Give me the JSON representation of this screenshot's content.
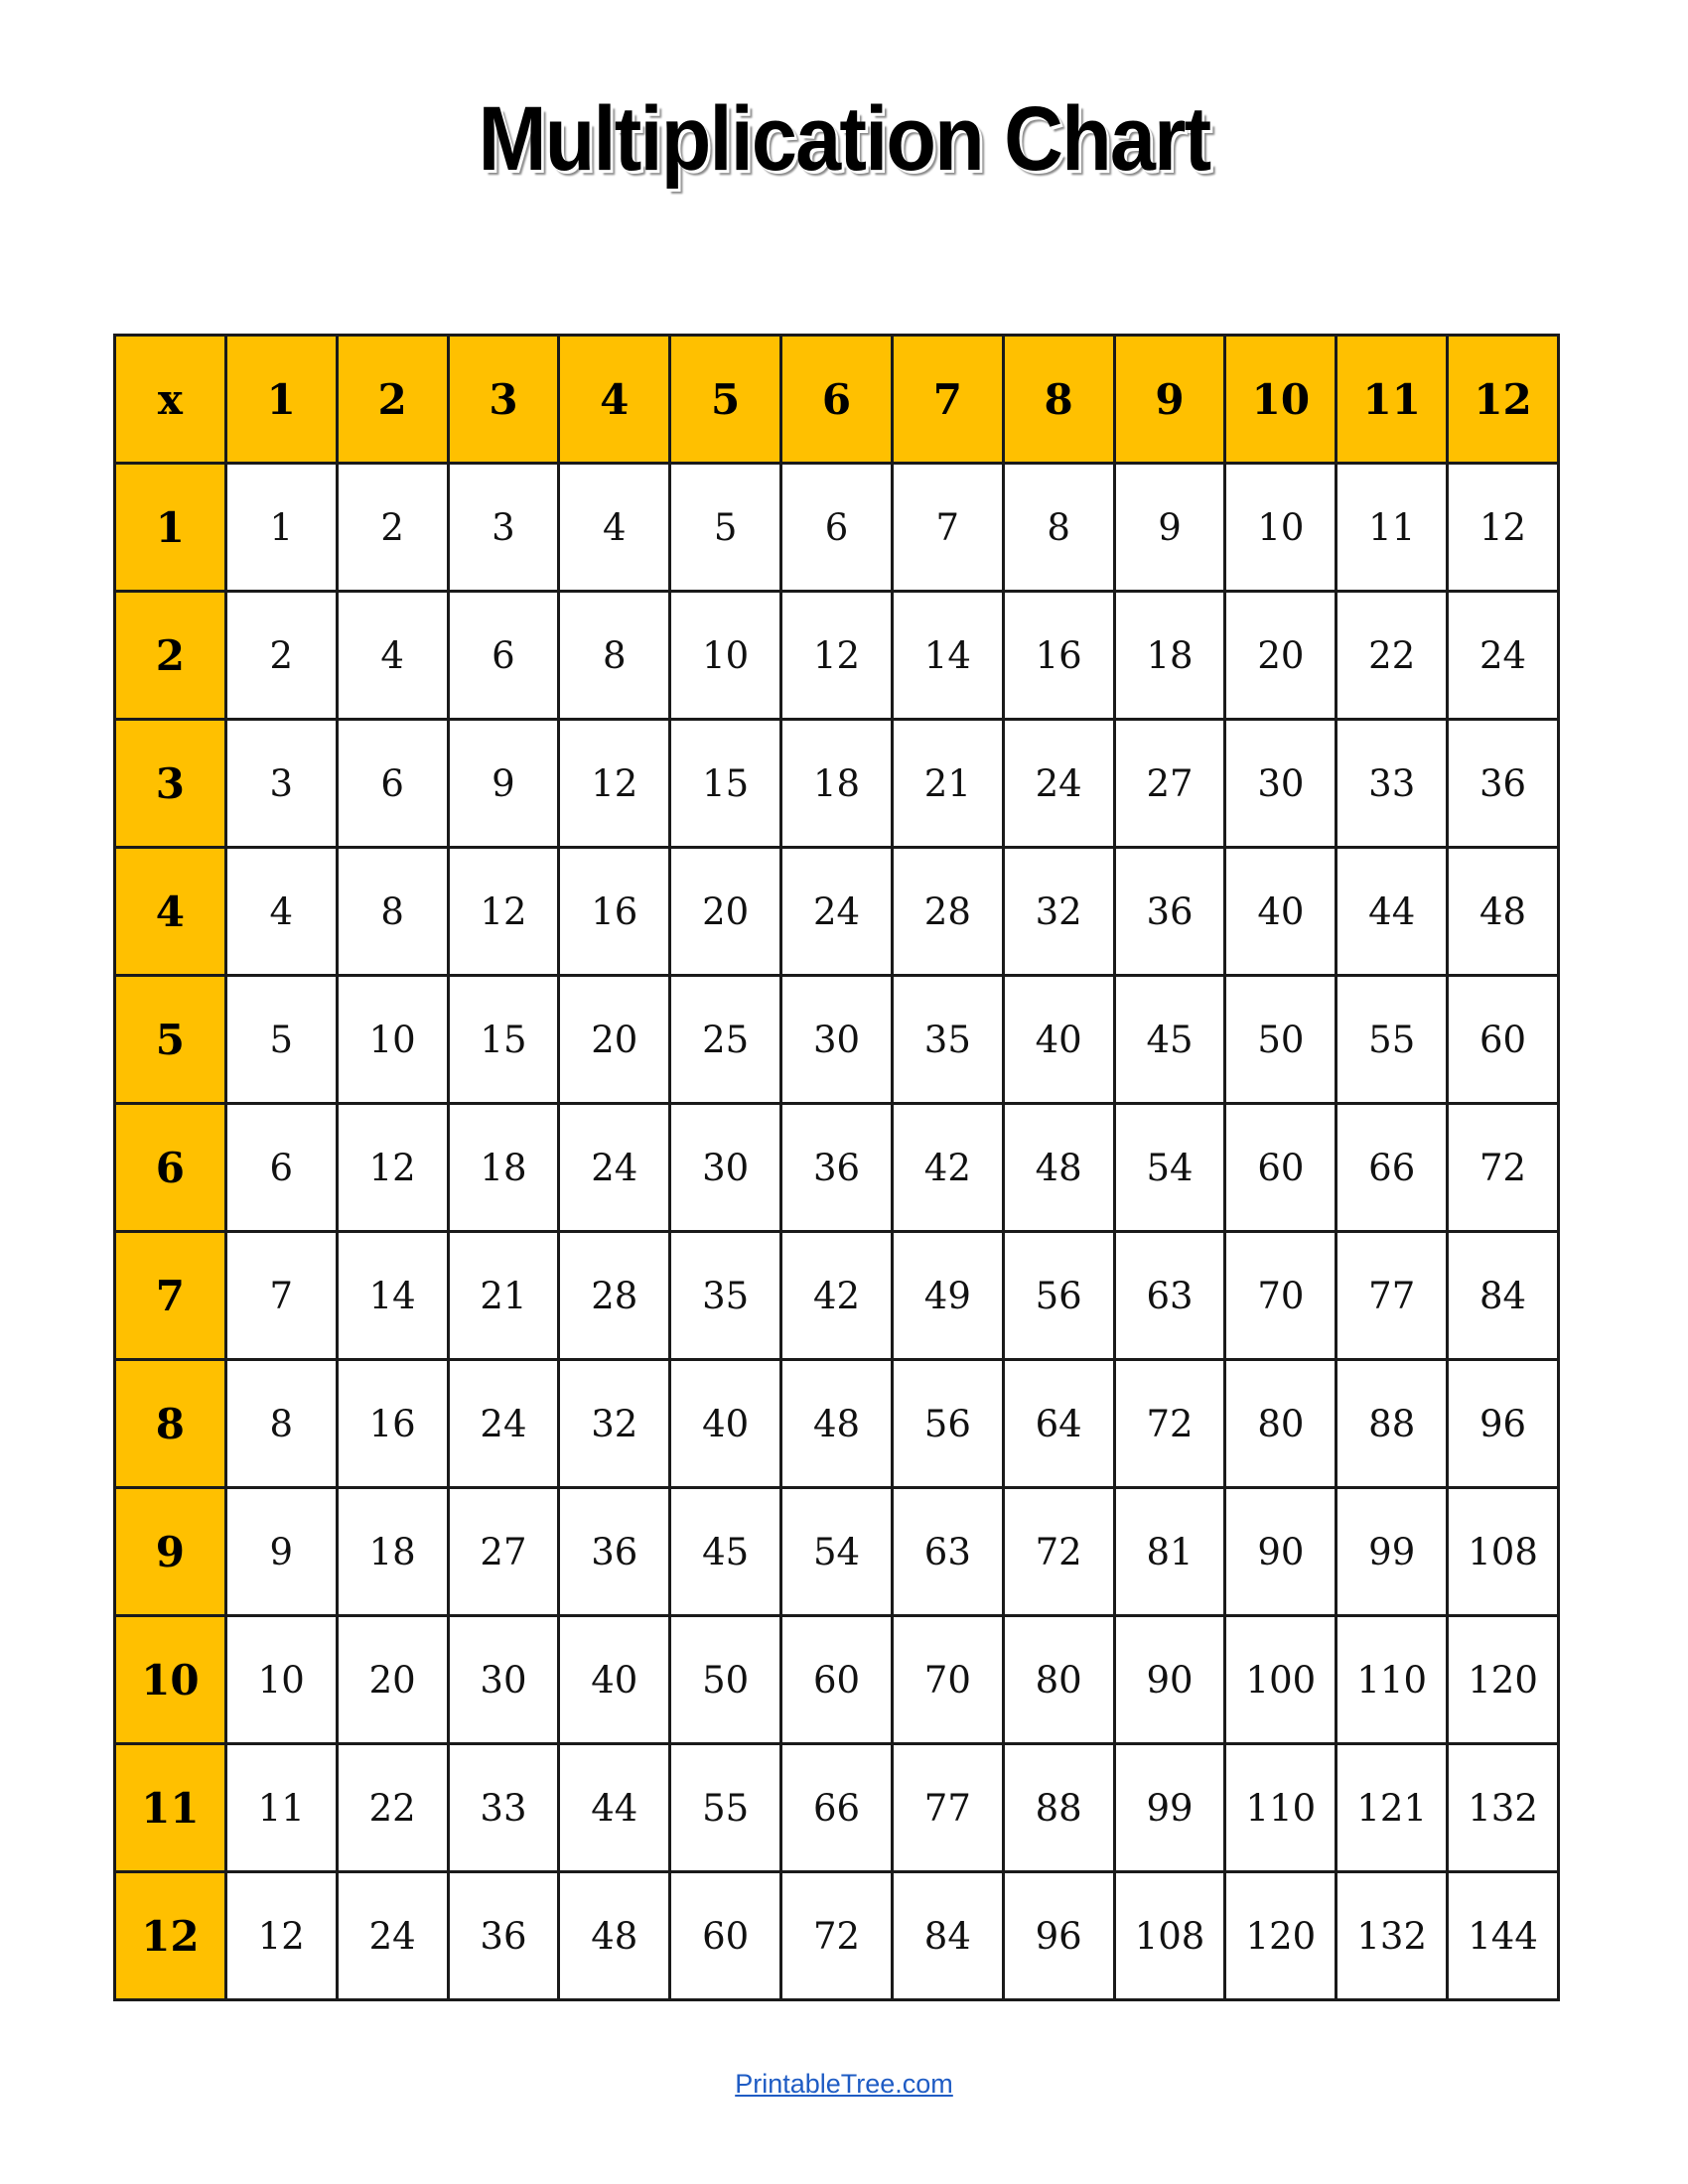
{
  "title": "Multiplication Chart",
  "colors": {
    "header_fill": "#FFC000",
    "border": "#1a1a1a",
    "link": "#1F5CC4"
  },
  "table": {
    "corner": "x",
    "column_headers": [
      "1",
      "2",
      "3",
      "4",
      "5",
      "6",
      "7",
      "8",
      "9",
      "10",
      "11",
      "12"
    ],
    "rows": [
      {
        "header": "1",
        "values": [
          "1",
          "2",
          "3",
          "4",
          "5",
          "6",
          "7",
          "8",
          "9",
          "10",
          "11",
          "12"
        ]
      },
      {
        "header": "2",
        "values": [
          "2",
          "4",
          "6",
          "8",
          "10",
          "12",
          "14",
          "16",
          "18",
          "20",
          "22",
          "24"
        ]
      },
      {
        "header": "3",
        "values": [
          "3",
          "6",
          "9",
          "12",
          "15",
          "18",
          "21",
          "24",
          "27",
          "30",
          "33",
          "36"
        ]
      },
      {
        "header": "4",
        "values": [
          "4",
          "8",
          "12",
          "16",
          "20",
          "24",
          "28",
          "32",
          "36",
          "40",
          "44",
          "48"
        ]
      },
      {
        "header": "5",
        "values": [
          "5",
          "10",
          "15",
          "20",
          "25",
          "30",
          "35",
          "40",
          "45",
          "50",
          "55",
          "60"
        ]
      },
      {
        "header": "6",
        "values": [
          "6",
          "12",
          "18",
          "24",
          "30",
          "36",
          "42",
          "48",
          "54",
          "60",
          "66",
          "72"
        ]
      },
      {
        "header": "7",
        "values": [
          "7",
          "14",
          "21",
          "28",
          "35",
          "42",
          "49",
          "56",
          "63",
          "70",
          "77",
          "84"
        ]
      },
      {
        "header": "8",
        "values": [
          "8",
          "16",
          "24",
          "32",
          "40",
          "48",
          "56",
          "64",
          "72",
          "80",
          "88",
          "96"
        ]
      },
      {
        "header": "9",
        "values": [
          "9",
          "18",
          "27",
          "36",
          "45",
          "54",
          "63",
          "72",
          "81",
          "90",
          "99",
          "108"
        ]
      },
      {
        "header": "10",
        "values": [
          "10",
          "20",
          "30",
          "40",
          "50",
          "60",
          "70",
          "80",
          "90",
          "100",
          "110",
          "120"
        ]
      },
      {
        "header": "11",
        "values": [
          "11",
          "22",
          "33",
          "44",
          "55",
          "66",
          "77",
          "88",
          "99",
          "110",
          "121",
          "132"
        ]
      },
      {
        "header": "12",
        "values": [
          "12",
          "24",
          "36",
          "48",
          "60",
          "72",
          "84",
          "96",
          "108",
          "120",
          "132",
          "144"
        ]
      }
    ]
  },
  "footer": {
    "link_text": "PrintableTree.com"
  }
}
